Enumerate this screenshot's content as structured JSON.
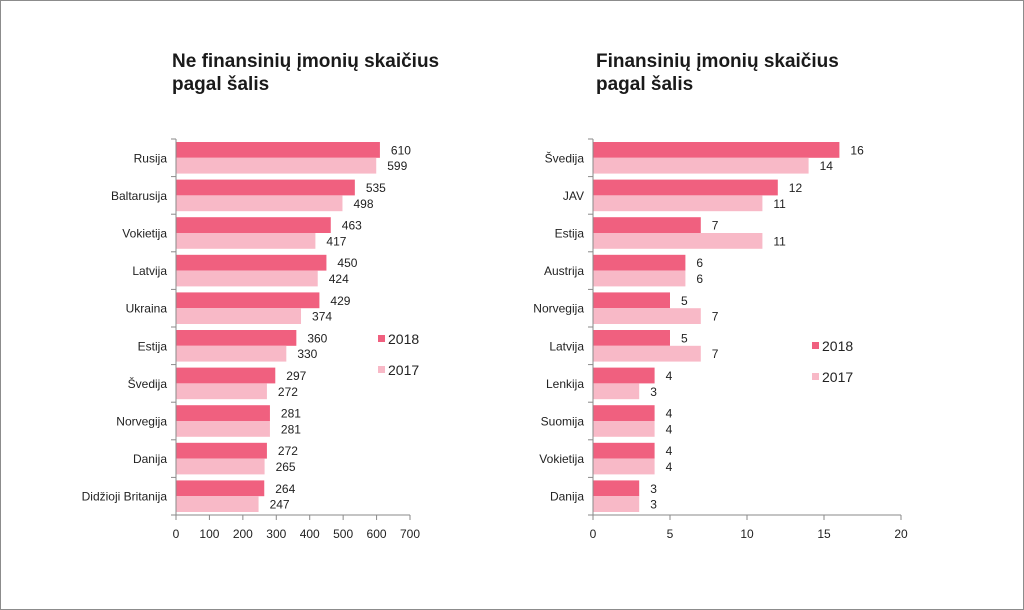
{
  "colors": {
    "s2018": "#f0607f",
    "s2017": "#f8b9c7",
    "axis": "#8a8a8a",
    "text": "#222222"
  },
  "chart_data": [
    {
      "type": "bar",
      "orientation": "horizontal",
      "title_line1": "Ne finansinių įmonių skaičius",
      "title_line2": "pagal šalis",
      "categories": [
        "Rusija",
        "Baltarusija",
        "Vokietija",
        "Latvija",
        "Ukraina",
        "Estija",
        "Švedija",
        "Norvegija",
        "Danija",
        "Didžioji Britanija"
      ],
      "series": [
        {
          "name": "2018",
          "values": [
            610,
            535,
            463,
            450,
            429,
            360,
            297,
            281,
            272,
            264
          ]
        },
        {
          "name": "2017",
          "values": [
            599,
            498,
            417,
            424,
            374,
            330,
            272,
            281,
            265,
            247
          ]
        }
      ],
      "xlim": [
        0,
        700
      ],
      "xticks": [
        0,
        100,
        200,
        300,
        400,
        500,
        600,
        700
      ],
      "xlabel": "",
      "ylabel": "",
      "grid": false,
      "legend": "right"
    },
    {
      "type": "bar",
      "orientation": "horizontal",
      "title_line1": "Finansinių įmonių skaičius",
      "title_line2": "pagal šalis",
      "categories": [
        "Švedija",
        "JAV",
        "Estija",
        "Austrija",
        "Norvegija",
        "Latvija",
        "Lenkija",
        "Suomija",
        "Vokietija",
        "Danija"
      ],
      "series": [
        {
          "name": "2018",
          "values": [
            16,
            12,
            7,
            6,
            5,
            5,
            4,
            4,
            4,
            3
          ]
        },
        {
          "name": "2017",
          "values": [
            14,
            11,
            11,
            6,
            7,
            7,
            3,
            4,
            4,
            3
          ]
        }
      ],
      "xlim": [
        0,
        20
      ],
      "xticks": [
        0,
        5,
        10,
        15,
        20
      ],
      "xlabel": "",
      "ylabel": "",
      "grid": false,
      "legend": "right"
    }
  ]
}
